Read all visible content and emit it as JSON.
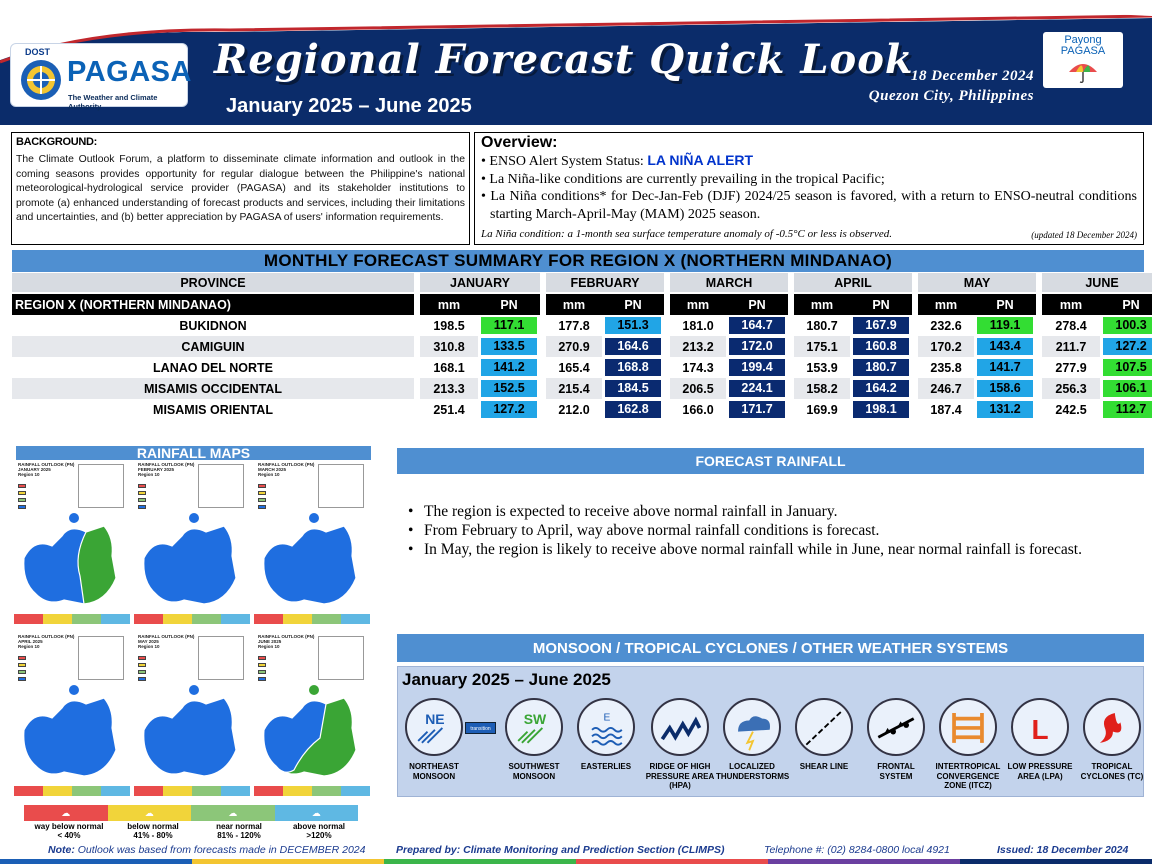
{
  "header": {
    "agency_top": "DOST",
    "agency_name": "PAGASA",
    "agency_tagline": "The Weather and Climate Authority",
    "title": "Regional Forecast Quick Look",
    "period": "January 2025 – June 2025",
    "date": "18 December 2024",
    "location": "Quezon City, Philippines",
    "payong_line1": "Payong",
    "payong_line2": "PAGASA"
  },
  "background": {
    "heading": "BACKGROUND:",
    "text": "The Climate Outlook Forum, a platform to disseminate climate information and outlook in the coming seasons provides opportunity for regular dialogue between the Philippine's national meteorological-hydrological service provider (PAGASA) and its stakeholder institutions to promote (a) enhanced understanding of forecast products and services, including their limitations and uncertainties, and (b) better appreciation by PAGASA of users' information requirements."
  },
  "overview": {
    "heading": "Overview:",
    "enso_prefix": "ENSO Alert System Status: ",
    "enso_status": "LA NIÑA ALERT",
    "bullet2": "La Niña-like conditions are currently prevailing in the tropical Pacific;",
    "bullet3": "La Niña conditions* for Dec-Jan-Feb (DJF) 2024/25 season is favored, with a return to ENSO-neutral conditions starting March-April-May (MAM) 2025 season.",
    "note": "La Niña condition: a 1-month sea surface temperature anomaly of -0.5°C or less is observed.",
    "updated": "(updated 18 December 2024)"
  },
  "forecast_table": {
    "title": "MONTHLY FORECAST SUMMARY FOR REGION X (NORTHERN MINDANAO)",
    "province_header": "PROVINCE",
    "region_label": "REGION X (NORTHERN MINDANAO)",
    "months": [
      "JANUARY",
      "FEBRUARY",
      "MARCH",
      "APRIL",
      "MAY",
      "JUNE"
    ],
    "unit_mm": "mm",
    "unit_pn": "PN",
    "rows": [
      {
        "province": "BUKIDNON",
        "values": [
          [
            "198.5",
            "117.1",
            "gr"
          ],
          [
            "177.8",
            "151.3",
            "lb"
          ],
          [
            "181.0",
            "164.7",
            "db"
          ],
          [
            "180.7",
            "167.9",
            "db"
          ],
          [
            "232.6",
            "119.1",
            "gr"
          ],
          [
            "278.4",
            "100.3",
            "gr"
          ]
        ]
      },
      {
        "province": "CAMIGUIN",
        "values": [
          [
            "310.8",
            "133.5",
            "lb"
          ],
          [
            "270.9",
            "164.6",
            "db"
          ],
          [
            "213.2",
            "172.0",
            "db"
          ],
          [
            "175.1",
            "160.8",
            "db"
          ],
          [
            "170.2",
            "143.4",
            "lb"
          ],
          [
            "211.7",
            "127.2",
            "lb"
          ]
        ]
      },
      {
        "province": "LANAO DEL NORTE",
        "values": [
          [
            "168.1",
            "141.2",
            "lb"
          ],
          [
            "165.4",
            "168.8",
            "db"
          ],
          [
            "174.3",
            "199.4",
            "db"
          ],
          [
            "153.9",
            "180.7",
            "db"
          ],
          [
            "235.8",
            "141.7",
            "lb"
          ],
          [
            "277.9",
            "107.5",
            "gr"
          ]
        ]
      },
      {
        "province": "MISAMIS OCCIDENTAL",
        "values": [
          [
            "213.3",
            "152.5",
            "lb"
          ],
          [
            "215.4",
            "184.5",
            "db"
          ],
          [
            "206.5",
            "224.1",
            "db"
          ],
          [
            "158.2",
            "164.2",
            "db"
          ],
          [
            "246.7",
            "158.6",
            "lb"
          ],
          [
            "256.3",
            "106.1",
            "gr"
          ]
        ]
      },
      {
        "province": "MISAMIS ORIENTAL",
        "values": [
          [
            "251.4",
            "127.2",
            "lb"
          ],
          [
            "212.0",
            "162.8",
            "db"
          ],
          [
            "166.0",
            "171.7",
            "db"
          ],
          [
            "169.9",
            "198.1",
            "db"
          ],
          [
            "187.4",
            "131.2",
            "lb"
          ],
          [
            "242.5",
            "112.7",
            "gr"
          ]
        ]
      }
    ]
  },
  "rainfall_maps": {
    "title": "RAINFALL MAPS",
    "panels": [
      {
        "cap1": "RAINFALL OUTLOOK (PN)",
        "cap2": "JANUARY 2025",
        "cap3": "Region 10"
      },
      {
        "cap1": "RAINFALL OUTLOOK (PN)",
        "cap2": "FEBRUARY 2025",
        "cap3": "Region 10"
      },
      {
        "cap1": "RAINFALL OUTLOOK (PN)",
        "cap2": "MARCH 2025",
        "cap3": "Region 10"
      },
      {
        "cap1": "RAINFALL OUTLOOK (PN)",
        "cap2": "APRIL 2025",
        "cap3": "Region 10"
      },
      {
        "cap1": "RAINFALL OUTLOOK (PN)",
        "cap2": "MAY 2025",
        "cap3": "Region 10"
      },
      {
        "cap1": "RAINFALL OUTLOOK (PN)",
        "cap2": "JUNE 2025",
        "cap3": "Region 10"
      }
    ],
    "legend": [
      {
        "label1": "way below normal",
        "label2": "< 40%",
        "color": "#e94c4c"
      },
      {
        "label1": "below normal",
        "label2": "41% - 80%",
        "color": "#f1d43a"
      },
      {
        "label1": "near normal",
        "label2": "81% - 120%",
        "color": "#8cc679"
      },
      {
        "label1": "above normal",
        "label2": ">120%",
        "color": "#5fb8e3"
      }
    ]
  },
  "forecast_rainfall": {
    "title": "FORECAST RAINFALL",
    "bullets": [
      "The region is expected to receive above normal rainfall in January.",
      "From February to April, way above normal rainfall conditions is forecast.",
      "In May, the region is likely to receive above normal rainfall while in June, near normal rainfall is forecast."
    ]
  },
  "weather_systems": {
    "title": "MONSOON / TROPICAL CYCLONES / OTHER WEATHER SYSTEMS",
    "period": "January 2025 – June 2025",
    "transition": "transition",
    "systems": [
      {
        "code": "NE",
        "label": "NORTHEAST MONSOON",
        "icon": "northeast-monsoon-icon"
      },
      {
        "code": "SW",
        "label": "SOUTHWEST MONSOON",
        "icon": "southwest-monsoon-icon"
      },
      {
        "code": "E",
        "label": "EASTERLIES",
        "icon": "easterlies-icon"
      },
      {
        "code": "",
        "label": "RIDGE OF HIGH PRESSURE AREA (HPA)",
        "icon": "ridge-hpa-icon"
      },
      {
        "code": "",
        "label": "LOCALIZED THUNDERSTORMS",
        "icon": "thunderstorm-icon"
      },
      {
        "code": "",
        "label": "SHEAR LINE",
        "icon": "shear-line-icon"
      },
      {
        "code": "",
        "label": "FRONTAL SYSTEM",
        "icon": "frontal-system-icon"
      },
      {
        "code": "",
        "label": "INTERTROPICAL CONVERGENCE ZONE (ITCZ)",
        "icon": "itcz-icon"
      },
      {
        "code": "L",
        "label": "LOW PRESSURE AREA (LPA)",
        "icon": "low-pressure-icon"
      },
      {
        "code": "",
        "label": "TROPICAL CYCLONES (TC)",
        "icon": "tropical-cyclone-icon"
      }
    ]
  },
  "footer": {
    "note_label": "Note:",
    "note_text": " Outlook was based from forecasts made in DECEMBER 2024",
    "prepared": "Prepared by: Climate Monitoring and Prediction Section (CLIMPS)",
    "telephone": "Telephone #: (02) 8284-0800 local 4921",
    "issued": "Issued: 18 December 2024"
  },
  "colors": {
    "navy": "#0b2c6a",
    "accent_blue": "#4f8fd1",
    "pn_green": "#33dd33",
    "pn_light_blue": "#21a5e6",
    "pn_dark_blue": "#0a2a70"
  }
}
